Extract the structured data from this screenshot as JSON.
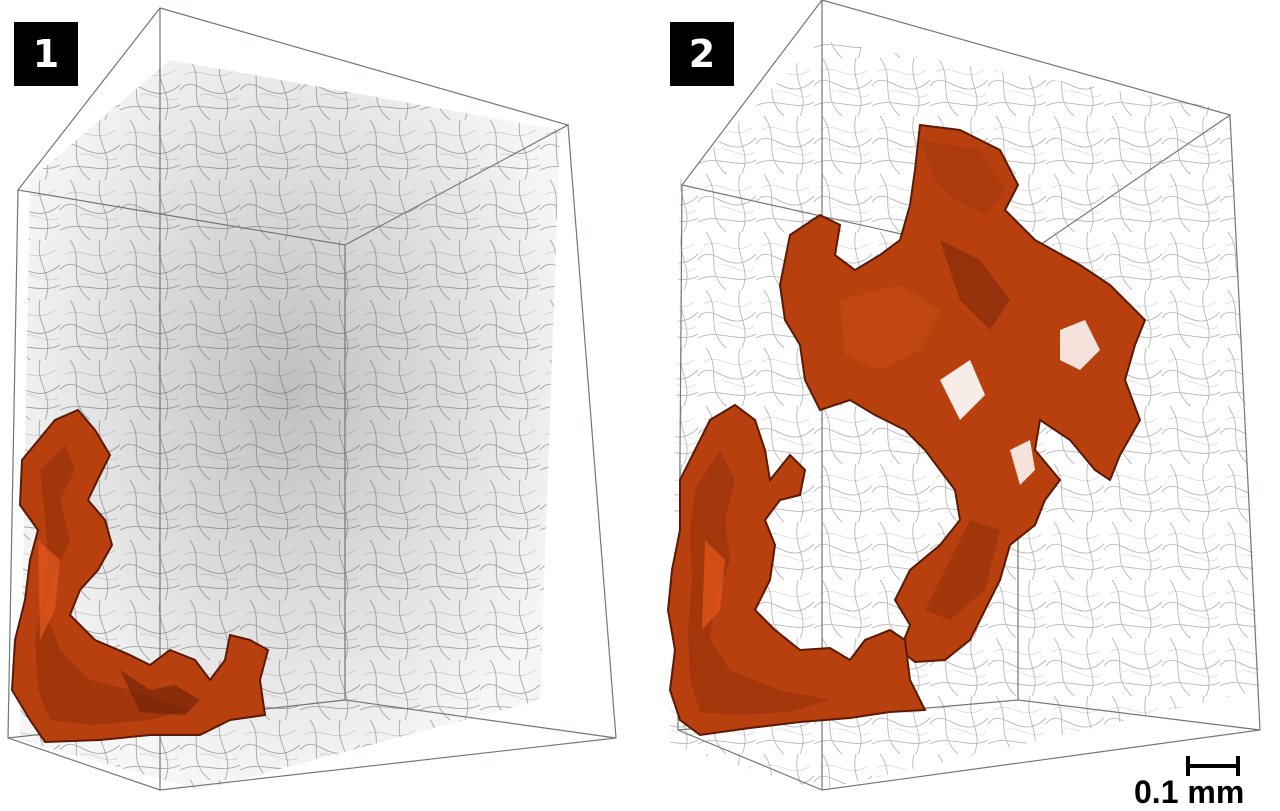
{
  "panels": [
    {
      "label": "1",
      "region": "orange-cluster-small"
    },
    {
      "label": "2",
      "region": "orange-cluster-large"
    }
  ],
  "scale_bar": {
    "label": "0.1 mm"
  },
  "colors": {
    "background": "#ffffff",
    "box_edges": "#6f7a6f",
    "network": "#3a3a3a",
    "cluster": "#b8400f",
    "cluster_shadow": "#5a1a05",
    "badge_bg": "#000000",
    "badge_text": "#ffffff"
  }
}
